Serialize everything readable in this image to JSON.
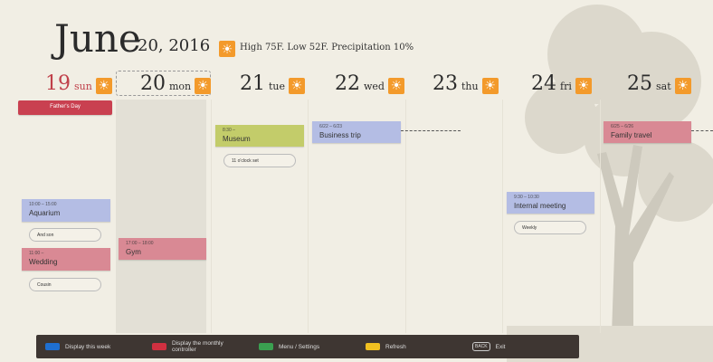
{
  "header": {
    "month": "June",
    "date": "20, 2016",
    "weather": "High 75F. Low 52F. Precipitation 10%",
    "weather_icon": "sun-icon"
  },
  "days": [
    {
      "num": "19",
      "name": "sun",
      "icon": "sun-cloud-icon"
    },
    {
      "num": "20",
      "name": "mon",
      "icon": "sun-icon"
    },
    {
      "num": "21",
      "name": "tue",
      "icon": "sun-cloud-icon"
    },
    {
      "num": "22",
      "name": "wed",
      "icon": "sun-icon"
    },
    {
      "num": "23",
      "name": "thu",
      "icon": "sun-icon"
    },
    {
      "num": "24",
      "name": "fri",
      "icon": "sun-icon"
    },
    {
      "num": "25",
      "name": "sat",
      "icon": "sun-icon"
    }
  ],
  "events": {
    "fathers_day": {
      "title": "Father's Day"
    },
    "aquarium": {
      "time": "10:00 – 15:00",
      "title": "Aquarium",
      "note": "And son"
    },
    "wedding": {
      "time": "11:00 –",
      "title": "Wedding",
      "note": "Cousin"
    },
    "gym": {
      "time": "17:00 – 18:00",
      "title": "Gym"
    },
    "museum": {
      "time": "8:30 –",
      "title": "Museum",
      "note": "11 o'clock set"
    },
    "business": {
      "time": "6/22 – 6/23",
      "title": "Business trip"
    },
    "meeting": {
      "time": "9:30 – 10:30",
      "title": "Internal meeting",
      "note": "Weekly"
    },
    "family": {
      "time": "6/25 – 6/26",
      "title": "Family travel"
    }
  },
  "footer": [
    {
      "label": "Display this week",
      "color": "#1f6fd0"
    },
    {
      "label": "Display the monthly controller",
      "color": "#d03040"
    },
    {
      "label": "Menu / Settings",
      "color": "#3aa050"
    },
    {
      "label": "Refresh",
      "color": "#f0c020"
    },
    {
      "key": "BACK",
      "label": "Exit"
    }
  ]
}
